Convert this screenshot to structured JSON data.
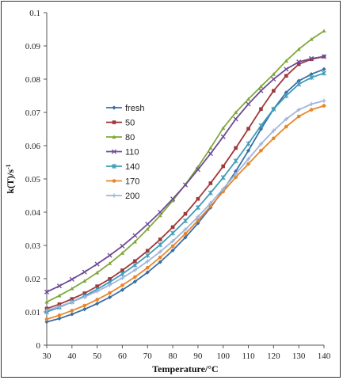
{
  "chart_data": {
    "type": "line",
    "xlabel": "Temperature/°C",
    "ylabel_main": "k(T)/s",
    "ylabel_sup": "-1",
    "xlim": [
      30,
      140
    ],
    "ylim": [
      0,
      0.1
    ],
    "x_ticks": [
      "30",
      "40",
      "50",
      "60",
      "70",
      "80",
      "90",
      "100",
      "110",
      "120",
      "130",
      "140"
    ],
    "y_ticks": [
      "0",
      "0.01",
      "0.02",
      "0.03",
      "0.04",
      "0.05",
      "0.06",
      "0.07",
      "0.08",
      "0.09",
      "0.1"
    ],
    "grid": false,
    "legend_position": "middle-left",
    "x": [
      30,
      35,
      40,
      45,
      50,
      55,
      60,
      65,
      70,
      75,
      80,
      85,
      90,
      95,
      100,
      105,
      110,
      115,
      120,
      125,
      130,
      135,
      140
    ],
    "series": [
      {
        "name": "fresh",
        "color": "#3b6ea5",
        "marker": "diamond",
        "values": [
          0.007,
          0.008,
          0.0093,
          0.0108,
          0.0125,
          0.0144,
          0.0166,
          0.0191,
          0.0219,
          0.025,
          0.0285,
          0.0324,
          0.0367,
          0.0414,
          0.0466,
          0.0523,
          0.0585,
          0.065,
          0.071,
          0.076,
          0.0795,
          0.0815,
          0.083
        ]
      },
      {
        "name": "50",
        "color": "#a0383a",
        "marker": "square",
        "values": [
          0.011,
          0.0123,
          0.0139,
          0.0156,
          0.0177,
          0.0199,
          0.0225,
          0.0253,
          0.0284,
          0.0318,
          0.0355,
          0.0395,
          0.044,
          0.0487,
          0.0538,
          0.0593,
          0.0651,
          0.071,
          0.0765,
          0.081,
          0.0845,
          0.086,
          0.0868
        ]
      },
      {
        "name": "80",
        "color": "#7fa83a",
        "marker": "triangle",
        "values": [
          0.013,
          0.0149,
          0.017,
          0.0193,
          0.0218,
          0.0246,
          0.0277,
          0.0311,
          0.0349,
          0.039,
          0.0435,
          0.0483,
          0.0536,
          0.0593,
          0.0653,
          0.07,
          0.074,
          0.0778,
          0.0815,
          0.0855,
          0.089,
          0.092,
          0.0945
        ]
      },
      {
        "name": "110",
        "color": "#6e4a94",
        "marker": "x",
        "values": [
          0.016,
          0.0178,
          0.0198,
          0.022,
          0.0244,
          0.027,
          0.0298,
          0.033,
          0.0364,
          0.04,
          0.044,
          0.0482,
          0.0528,
          0.0576,
          0.0627,
          0.068,
          0.0725,
          0.0765,
          0.08,
          0.083,
          0.0852,
          0.0862,
          0.0868
        ]
      },
      {
        "name": "140",
        "color": "#3f9cb8",
        "marker": "star",
        "values": [
          0.01,
          0.0114,
          0.013,
          0.0148,
          0.0168,
          0.019,
          0.0214,
          0.0241,
          0.027,
          0.0302,
          0.0337,
          0.0374,
          0.0414,
          0.0458,
          0.0504,
          0.0554,
          0.0606,
          0.066,
          0.071,
          0.075,
          0.0785,
          0.0805,
          0.0818
        ]
      },
      {
        "name": "170",
        "color": "#e8862a",
        "marker": "circle",
        "values": [
          0.0078,
          0.009,
          0.0104,
          0.0119,
          0.0137,
          0.0157,
          0.018,
          0.0205,
          0.0233,
          0.0264,
          0.0298,
          0.0335,
          0.0375,
          0.0418,
          0.0462,
          0.0505,
          0.0545,
          0.0585,
          0.0622,
          0.0657,
          0.0688,
          0.0708,
          0.072
        ]
      },
      {
        "name": "200",
        "color": "#9fb5dc",
        "marker": "plus",
        "values": [
          0.0105,
          0.0116,
          0.013,
          0.0145,
          0.0162,
          0.0181,
          0.0202,
          0.0226,
          0.0252,
          0.0281,
          0.0313,
          0.0348,
          0.0386,
          0.0427,
          0.047,
          0.0515,
          0.056,
          0.0605,
          0.0645,
          0.068,
          0.0708,
          0.0725,
          0.0735
        ]
      }
    ]
  }
}
